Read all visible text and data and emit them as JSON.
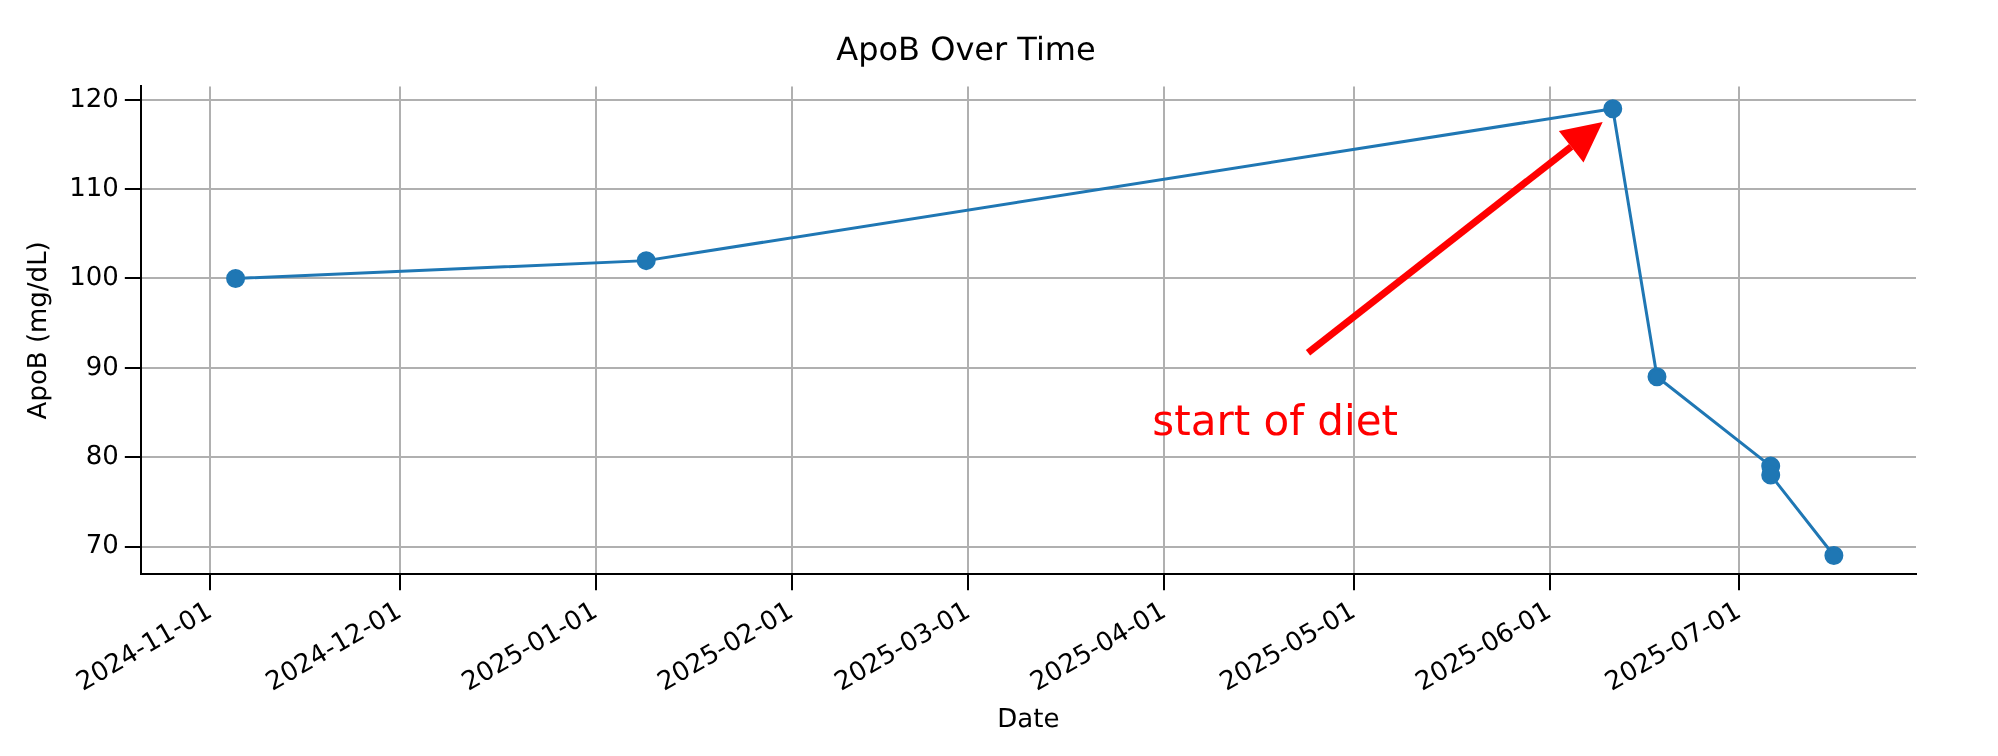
{
  "chart_data": {
    "type": "line",
    "title": "ApoB Over Time",
    "xlabel": "Date",
    "ylabel": "ApoB (mg/dL)",
    "x": [
      "2024-11-05",
      "2025-01-09",
      "2025-06-11",
      "2025-06-18",
      "2025-07-06",
      "2025-07-06",
      "2025-07-16"
    ],
    "series": [
      {
        "color": "#1f77b4",
        "values": [
          100,
          102,
          119,
          89,
          79,
          78,
          69
        ]
      }
    ],
    "xlim": [
      "2024-10-21",
      "2025-07-29"
    ],
    "xticks": [
      "2024-11-01",
      "2024-12-01",
      "2025-01-01",
      "2025-02-01",
      "2025-03-01",
      "2025-04-01",
      "2025-05-01",
      "2025-06-01",
      "2025-07-01"
    ],
    "ylim": [
      66.9,
      121.5
    ],
    "yticks": [
      70,
      80,
      90,
      100,
      110,
      120
    ],
    "annotations": [
      "start of diet"
    ],
    "grid": true,
    "legend": false,
    "marker": "circle",
    "line_style": "solid"
  }
}
